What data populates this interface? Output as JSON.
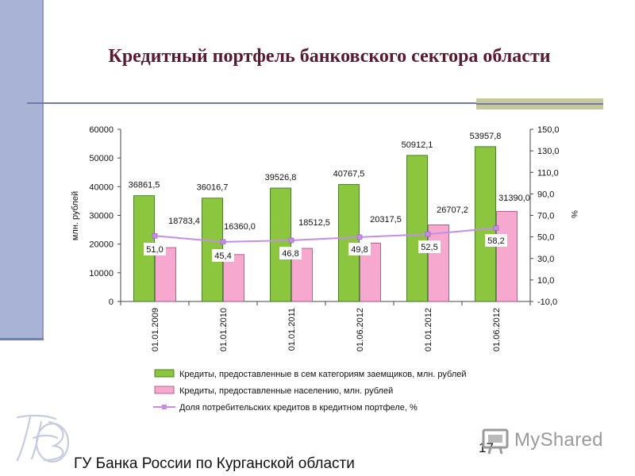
{
  "slide": {
    "title": "Кредитный портфель банковского сектора области",
    "footer": "ГУ Банка России по Курганской области",
    "page_number": "17",
    "watermark": "MyShared"
  },
  "chart_data": {
    "type": "bar",
    "categories": [
      "01.01.2009",
      "01.01.2010",
      "01.01.2011",
      "01.06.2012",
      "01.01.2012",
      "01.06.2012"
    ],
    "series": [
      {
        "name": "Кредиты, предоставленные в сем категориям заемщиков, млн. рублей",
        "type": "bar",
        "axis": "left",
        "color": "#8cc63f",
        "values": [
          36861.5,
          36016.7,
          39526.8,
          40767.5,
          50912.1,
          53957.8
        ],
        "labels": [
          "36861,5",
          "36016,7",
          "39526,8",
          "40767,5",
          "50912,1",
          "53957,8"
        ]
      },
      {
        "name": "Кредиты, предоставленные населению, млн. рублей",
        "type": "bar",
        "axis": "left",
        "color": "#f7a8cf",
        "values": [
          18783.4,
          16360.0,
          18512.5,
          20317.5,
          26707.2,
          31390.0
        ],
        "labels": [
          "18783,4",
          "16360,0",
          "18512,5",
          "20317,5",
          "26707,2",
          "31390,0"
        ]
      },
      {
        "name": "Доля потребительских кредитов в кредитном портфеле, %",
        "type": "line",
        "axis": "right",
        "color": "#c58ee3",
        "values": [
          51.0,
          45.4,
          46.8,
          49.8,
          52.5,
          58.2
        ],
        "labels": [
          "51,0",
          "45,4",
          "46,8",
          "49,8",
          "52,5",
          "58,2"
        ]
      }
    ],
    "ylabel_left": "млн. рублей",
    "ylabel_right": "%",
    "ylim_left": [
      0,
      60000
    ],
    "ylim_right": [
      -10,
      150
    ],
    "yticks_left": [
      "60000",
      "50000",
      "40000",
      "30000",
      "20000",
      "10000",
      "0"
    ],
    "yticks_right": [
      "150,0",
      "130,0",
      "110,0",
      "90,0",
      "70,0",
      "50,0",
      "30,0",
      "10,0",
      "-10,0"
    ],
    "grid": false,
    "legend_position": "bottom"
  }
}
